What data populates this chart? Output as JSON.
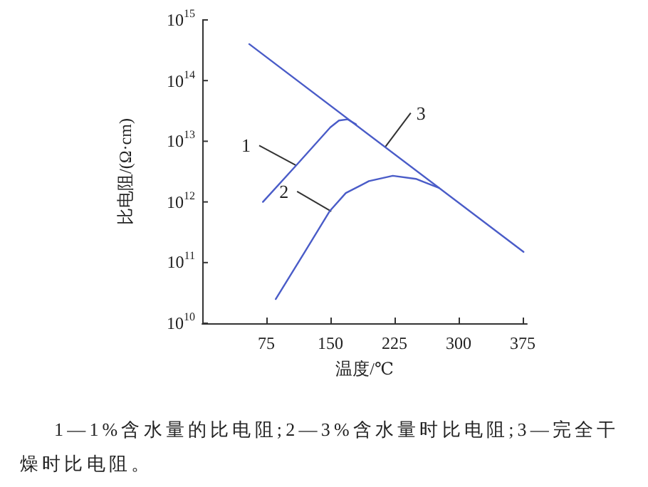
{
  "chart_data": {
    "type": "line",
    "xlabel": "温度/℃",
    "ylabel": "比电阻/(Ω·cm)",
    "series": [
      {
        "color": "#4a5cc8",
        "x": [
          71,
          110,
          150,
          160,
          170,
          180
        ],
        "values": [
          1000000000000.0,
          4000000000000.0,
          17000000000000.0,
          22000000000000.0,
          23000000000000.0,
          19000000000000.0
        ]
      },
      {
        "color": "#4a5cc8",
        "x": [
          86,
          120,
          149,
          168,
          195,
          223,
          250,
          277
        ],
        "values": [
          25000000000.0,
          150000000000.0,
          700000000000.0,
          1400000000000.0,
          2200000000000.0,
          2700000000000.0,
          2400000000000.0,
          1700000000000.0
        ]
      },
      {
        "color": "#4a5cc8",
        "x": [
          55,
          376
        ],
        "values": [
          400000000000000.0,
          150000000000.0
        ]
      }
    ],
    "log": "y",
    "xlim": [
      0,
      380
    ],
    "xticks": [
      75,
      150,
      225,
      300,
      375
    ],
    "ylim": [
      10000000000.0,
      1000000000000000.0
    ],
    "yticks": [
      {
        "value": 10000000000.0,
        "label": "10$^{10}$"
      },
      {
        "value": 100000000000.0,
        "label": "10$^{11}$"
      },
      {
        "value": 1000000000000.0,
        "label": "10$^{12}$"
      },
      {
        "value": 10000000000000.0,
        "label": "10$^{13}$"
      },
      {
        "value": 100000000000000.0,
        "label": "10$^{14}$"
      },
      {
        "value": 1000000000000000.0,
        "label": "10$^{15}$"
      }
    ],
    "grid": false,
    "marker": "none",
    "line_style": "solid",
    "annotations": [
      {
        "text": "1",
        "x": 110,
        "y": 4000000000000.0
      },
      {
        "text": "2",
        "x": 151,
        "y": 700000000000.0
      },
      {
        "text": "3",
        "x": 214,
        "y": 8000000000000.0
      },
      "1—1%含水量的比电阻;2—3%含水量时比电阻;3—完全干燥时比电阻。"
    ]
  }
}
